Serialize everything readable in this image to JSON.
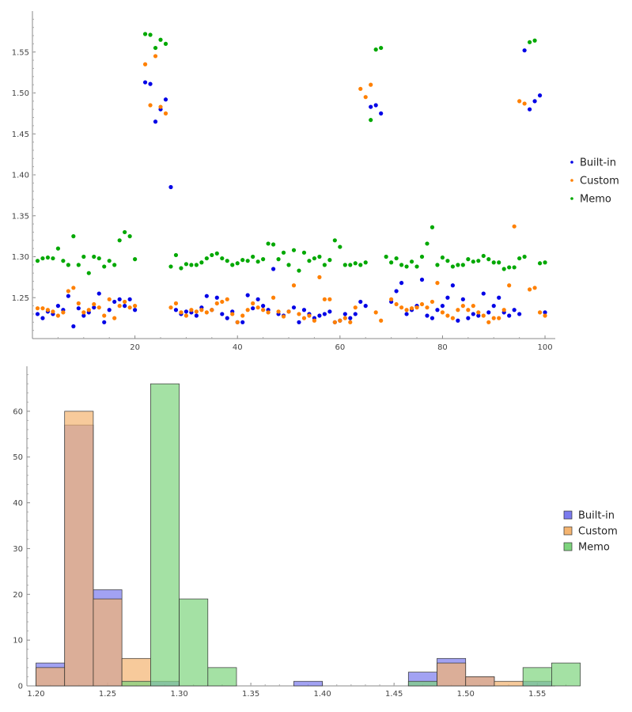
{
  "chart_data": [
    {
      "type": "scatter",
      "title": "",
      "xlabel": "",
      "ylabel": "",
      "xlim": [
        0,
        102
      ],
      "ylim": [
        1.2,
        1.6
      ],
      "grid": false,
      "legend_placement": "right",
      "x_ticks": [
        {
          "value": 20,
          "label": "20"
        },
        {
          "value": 40,
          "label": "40"
        },
        {
          "value": 60,
          "label": "60"
        },
        {
          "value": 80,
          "label": "80"
        },
        {
          "value": 100,
          "label": "100"
        }
      ],
      "y_ticks": [
        {
          "value": 1.25,
          "label": "1.25"
        },
        {
          "value": 1.3,
          "label": "1.30"
        },
        {
          "value": 1.35,
          "label": "1.35"
        },
        {
          "value": 1.4,
          "label": "1.40"
        },
        {
          "value": 1.45,
          "label": "1.45"
        },
        {
          "value": 1.5,
          "label": "1.50"
        },
        {
          "value": 1.55,
          "label": "1.55"
        }
      ],
      "series": [
        {
          "name": "Built-in",
          "color": "#0000e6",
          "x": [
            1,
            2,
            3,
            4,
            5,
            6,
            7,
            8,
            9,
            10,
            11,
            12,
            13,
            14,
            15,
            16,
            17,
            18,
            19,
            20,
            22,
            23,
            24,
            25,
            26,
            27,
            28,
            29,
            30,
            31,
            32,
            33,
            34,
            35,
            36,
            37,
            38,
            39,
            40,
            41,
            42,
            43,
            44,
            45,
            46,
            47,
            48,
            49,
            50,
            51,
            52,
            53,
            54,
            55,
            56,
            57,
            58,
            59,
            60,
            61,
            62,
            63,
            64,
            65,
            66,
            67,
            68,
            70,
            71,
            72,
            73,
            74,
            75,
            76,
            77,
            78,
            79,
            80,
            81,
            82,
            83,
            84,
            85,
            86,
            87,
            88,
            89,
            90,
            91,
            92,
            93,
            94,
            95,
            96,
            97,
            98,
            99,
            100
          ],
          "y": [
            1.23,
            1.225,
            1.233,
            1.23,
            1.24,
            1.235,
            1.252,
            1.215,
            1.237,
            1.228,
            1.232,
            1.238,
            1.255,
            1.22,
            1.235,
            1.245,
            1.248,
            1.24,
            1.248,
            1.235,
            1.513,
            1.511,
            1.465,
            1.48,
            1.492,
            1.385,
            1.235,
            1.23,
            1.233,
            1.232,
            1.228,
            1.238,
            1.252,
            1.235,
            1.25,
            1.23,
            1.225,
            1.233,
            1.22,
            1.22,
            1.253,
            1.237,
            1.248,
            1.24,
            1.235,
            1.285,
            1.23,
            1.228,
            1.233,
            1.238,
            1.22,
            1.235,
            1.23,
            1.225,
            1.228,
            1.23,
            1.233,
            1.22,
            1.222,
            1.23,
            1.225,
            1.23,
            1.245,
            1.24,
            1.483,
            1.485,
            1.475,
            1.245,
            1.258,
            1.268,
            1.23,
            1.235,
            1.24,
            1.272,
            1.228,
            1.225,
            1.235,
            1.24,
            1.25,
            1.265,
            1.222,
            1.248,
            1.225,
            1.23,
            1.228,
            1.255,
            1.232,
            1.24,
            1.25,
            1.232,
            1.228,
            1.235,
            1.23,
            1.552,
            1.48,
            1.49,
            1.497,
            1.232
          ]
        },
        {
          "name": "Custom",
          "color": "#ff8000",
          "x": [
            1,
            2,
            3,
            4,
            5,
            6,
            7,
            8,
            9,
            10,
            11,
            12,
            13,
            14,
            15,
            16,
            17,
            18,
            19,
            20,
            22,
            23,
            24,
            25,
            26,
            27,
            28,
            29,
            30,
            31,
            32,
            33,
            34,
            35,
            36,
            37,
            38,
            39,
            40,
            41,
            42,
            43,
            44,
            45,
            46,
            47,
            48,
            49,
            50,
            51,
            52,
            53,
            54,
            55,
            56,
            57,
            58,
            59,
            60,
            61,
            62,
            63,
            64,
            65,
            66,
            67,
            68,
            70,
            71,
            72,
            73,
            74,
            75,
            76,
            77,
            78,
            79,
            80,
            81,
            82,
            83,
            84,
            85,
            86,
            87,
            88,
            89,
            90,
            91,
            92,
            93,
            94,
            95,
            96,
            97,
            98,
            99,
            100
          ],
          "y": [
            1.237,
            1.237,
            1.235,
            1.233,
            1.228,
            1.232,
            1.258,
            1.262,
            1.243,
            1.232,
            1.235,
            1.242,
            1.238,
            1.228,
            1.248,
            1.225,
            1.24,
            1.245,
            1.238,
            1.24,
            1.535,
            1.485,
            1.545,
            1.483,
            1.475,
            1.238,
            1.243,
            1.232,
            1.228,
            1.235,
            1.233,
            1.235,
            1.232,
            1.235,
            1.243,
            1.245,
            1.248,
            1.23,
            1.22,
            1.228,
            1.235,
            1.243,
            1.238,
            1.235,
            1.232,
            1.25,
            1.233,
            1.227,
            1.233,
            1.265,
            1.23,
            1.225,
            1.228,
            1.222,
            1.275,
            1.248,
            1.248,
            1.22,
            1.222,
            1.225,
            1.22,
            1.238,
            1.505,
            1.495,
            1.51,
            1.232,
            1.222,
            1.248,
            1.242,
            1.238,
            1.235,
            1.237,
            1.238,
            1.242,
            1.238,
            1.245,
            1.268,
            1.232,
            1.228,
            1.225,
            1.235,
            1.24,
            1.235,
            1.24,
            1.232,
            1.228,
            1.22,
            1.225,
            1.225,
            1.235,
            1.265,
            1.337,
            1.49,
            1.487,
            1.26,
            1.262,
            1.232,
            1.228
          ]
        },
        {
          "name": "Memo",
          "color": "#00a800",
          "x": [
            1,
            2,
            3,
            4,
            5,
            6,
            7,
            8,
            9,
            10,
            11,
            12,
            13,
            14,
            15,
            16,
            17,
            18,
            19,
            20,
            22,
            23,
            24,
            25,
            26,
            27,
            28,
            29,
            30,
            31,
            32,
            33,
            34,
            35,
            36,
            37,
            38,
            39,
            40,
            41,
            42,
            43,
            44,
            45,
            46,
            47,
            48,
            49,
            50,
            51,
            52,
            53,
            54,
            55,
            56,
            57,
            58,
            59,
            60,
            61,
            62,
            63,
            64,
            65,
            66,
            67,
            68,
            69,
            70,
            71,
            72,
            73,
            74,
            75,
            76,
            77,
            78,
            79,
            80,
            81,
            82,
            83,
            84,
            85,
            86,
            87,
            88,
            89,
            90,
            91,
            92,
            93,
            94,
            95,
            96,
            97,
            98,
            99,
            100
          ],
          "y": [
            1.295,
            1.298,
            1.299,
            1.298,
            1.31,
            1.295,
            1.29,
            1.325,
            1.29,
            1.3,
            1.28,
            1.3,
            1.298,
            1.288,
            1.295,
            1.29,
            1.32,
            1.33,
            1.325,
            1.297,
            1.572,
            1.571,
            1.555,
            1.565,
            1.56,
            1.288,
            1.302,
            1.286,
            1.291,
            1.29,
            1.29,
            1.293,
            1.298,
            1.302,
            1.304,
            1.298,
            1.295,
            1.29,
            1.292,
            1.296,
            1.295,
            1.3,
            1.294,
            1.297,
            1.316,
            1.315,
            1.297,
            1.305,
            1.29,
            1.308,
            1.283,
            1.305,
            1.295,
            1.298,
            1.3,
            1.29,
            1.296,
            1.32,
            1.312,
            1.29,
            1.29,
            1.292,
            1.29,
            1.293,
            1.467,
            1.553,
            1.555,
            1.3,
            1.293,
            1.298,
            1.29,
            1.288,
            1.294,
            1.288,
            1.3,
            1.316,
            1.336,
            1.29,
            1.299,
            1.295,
            1.288,
            1.29,
            1.29,
            1.297,
            1.294,
            1.295,
            1.301,
            1.297,
            1.293,
            1.293,
            1.285,
            1.287,
            1.287,
            1.298,
            1.3,
            1.562,
            1.564,
            1.292,
            1.293
          ]
        }
      ]
    },
    {
      "type": "bar",
      "subtype": "histogram",
      "title": "",
      "xlabel": "",
      "ylabel": "",
      "xlim": [
        1.2,
        1.6
      ],
      "ylim": [
        0,
        70
      ],
      "grid": false,
      "legend_placement": "right",
      "bin_edges": [
        1.2,
        1.22,
        1.24,
        1.26,
        1.28,
        1.3,
        1.32,
        1.34,
        1.36,
        1.38,
        1.4,
        1.42,
        1.44,
        1.46,
        1.48,
        1.5,
        1.52,
        1.54,
        1.56,
        1.58
      ],
      "x_ticks": [
        {
          "value": 1.2,
          "label": "1.20"
        },
        {
          "value": 1.25,
          "label": "1.25"
        },
        {
          "value": 1.3,
          "label": "1.30"
        },
        {
          "value": 1.35,
          "label": "1.35"
        },
        {
          "value": 1.4,
          "label": "1.40"
        },
        {
          "value": 1.45,
          "label": "1.45"
        },
        {
          "value": 1.5,
          "label": "1.50"
        },
        {
          "value": 1.55,
          "label": "1.55"
        }
      ],
      "y_ticks": [
        {
          "value": 0,
          "label": "0"
        },
        {
          "value": 10,
          "label": "10"
        },
        {
          "value": 20,
          "label": "20"
        },
        {
          "value": 30,
          "label": "30"
        },
        {
          "value": 40,
          "label": "40"
        },
        {
          "value": 50,
          "label": "50"
        },
        {
          "value": 60,
          "label": "60"
        }
      ],
      "series": [
        {
          "name": "Built-in",
          "color": "#7b7bee",
          "values": [
            5,
            57,
            21,
            0,
            1,
            0,
            0,
            0,
            0,
            1,
            0,
            0,
            0,
            3,
            6,
            2,
            0,
            1,
            0
          ]
        },
        {
          "name": "Custom",
          "color": "#f4b470",
          "values": [
            4,
            60,
            19,
            6,
            0,
            0,
            0,
            0,
            0,
            0,
            0,
            0,
            0,
            0,
            5,
            2,
            1,
            0,
            0
          ]
        },
        {
          "name": "Memo",
          "color": "#7dd47d",
          "values": [
            0,
            0,
            0,
            1,
            66,
            19,
            4,
            0,
            0,
            0,
            0,
            0,
            0,
            1,
            0,
            0,
            0,
            4,
            5
          ]
        }
      ]
    }
  ]
}
